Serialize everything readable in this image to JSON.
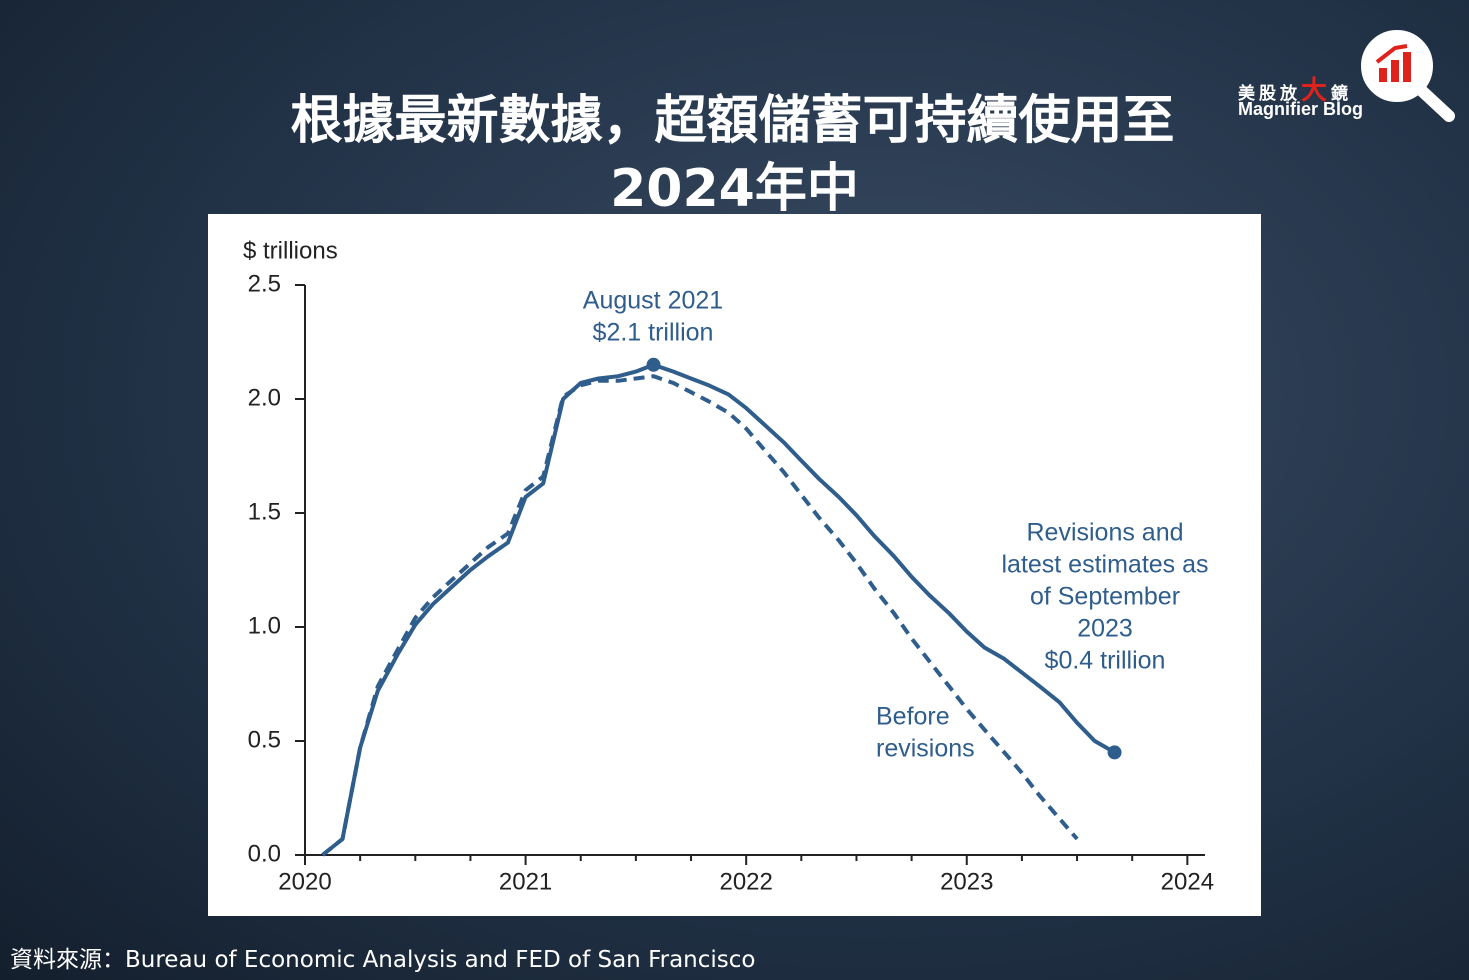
{
  "header": {
    "title_lines": [
      "根據最新數據，超額儲蓄可持續使用至",
      "2024年中"
    ]
  },
  "logo": {
    "chinese_left": "美股放",
    "chinese_highlight": "大",
    "chinese_right": "鏡",
    "english": "Magnifier Blog"
  },
  "source": "資料來源：Bureau of Economic Analysis and FED of San Francisco",
  "chart_data": {
    "type": "line",
    "y_label": "$ trillions",
    "x": [
      2020.08,
      2020.17,
      2020.25,
      2020.33,
      2020.42,
      2020.5,
      2020.58,
      2020.67,
      2020.75,
      2020.83,
      2020.92,
      2021.0,
      2021.08,
      2021.17,
      2021.25,
      2021.33,
      2021.42,
      2021.5,
      2021.58,
      2021.67,
      2021.75,
      2021.83,
      2021.92,
      2022.0,
      2022.08,
      2022.17,
      2022.25,
      2022.33,
      2022.42,
      2022.5,
      2022.58,
      2022.67,
      2022.75,
      2022.83,
      2022.92,
      2023.0,
      2023.08,
      2023.17,
      2023.25,
      2023.33,
      2023.42,
      2023.5,
      2023.58,
      2023.67
    ],
    "series": [
      {
        "color": "#2f5d8c",
        "dashed": false,
        "marker_indices": [
          18,
          43
        ],
        "values": [
          0.0,
          0.07,
          0.47,
          0.72,
          0.88,
          1.01,
          1.1,
          1.18,
          1.25,
          1.31,
          1.37,
          1.57,
          1.63,
          2.0,
          2.07,
          2.09,
          2.1,
          2.12,
          2.15,
          2.12,
          2.09,
          2.06,
          2.02,
          1.96,
          1.89,
          1.81,
          1.73,
          1.65,
          1.57,
          1.49,
          1.4,
          1.31,
          1.22,
          1.14,
          1.06,
          0.98,
          0.91,
          0.86,
          0.8,
          0.74,
          0.67,
          0.58,
          0.5,
          0.45
        ]
      },
      {
        "color": "#2f5d8c",
        "dashed": true,
        "marker_indices": [],
        "values": [
          0.0,
          0.07,
          0.47,
          0.74,
          0.9,
          1.04,
          1.13,
          1.21,
          1.28,
          1.35,
          1.41,
          1.6,
          1.66,
          2.01,
          2.06,
          2.08,
          2.08,
          2.09,
          2.1,
          2.07,
          2.03,
          1.99,
          1.94,
          1.87,
          1.78,
          1.68,
          1.58,
          1.48,
          1.38,
          1.28,
          1.17,
          1.06,
          0.95,
          0.85,
          0.74,
          0.64,
          0.55,
          0.45,
          0.36,
          0.26,
          0.16,
          0.07,
          null,
          null
        ]
      }
    ],
    "annotations": [
      {
        "lines": [
          "August 2021",
          "$2.1 trillion"
        ]
      },
      {
        "lines": [
          "Revisions and",
          "latest estimates as",
          "of September",
          "2023",
          "$0.4 trillion"
        ]
      },
      {
        "lines": [
          "Before",
          "revisions"
        ]
      }
    ],
    "xlim": [
      2020,
      2024.08
    ],
    "xticks": [
      2020,
      2021,
      2022,
      2023,
      2024
    ],
    "xminorticks": [
      2020.25,
      2020.5,
      2020.75,
      2021.25,
      2021.5,
      2021.75,
      2022.25,
      2022.5,
      2022.75,
      2023.25,
      2023.5,
      2023.75
    ],
    "ylim": [
      0,
      2.5
    ],
    "yticks": [
      {
        "value": 0,
        "label": "0.0"
      },
      0.5,
      {
        "value": 1,
        "label": "1.0"
      },
      1.5,
      {
        "value": 2,
        "label": "2.0"
      },
      2.5
    ],
    "grid": false
  }
}
